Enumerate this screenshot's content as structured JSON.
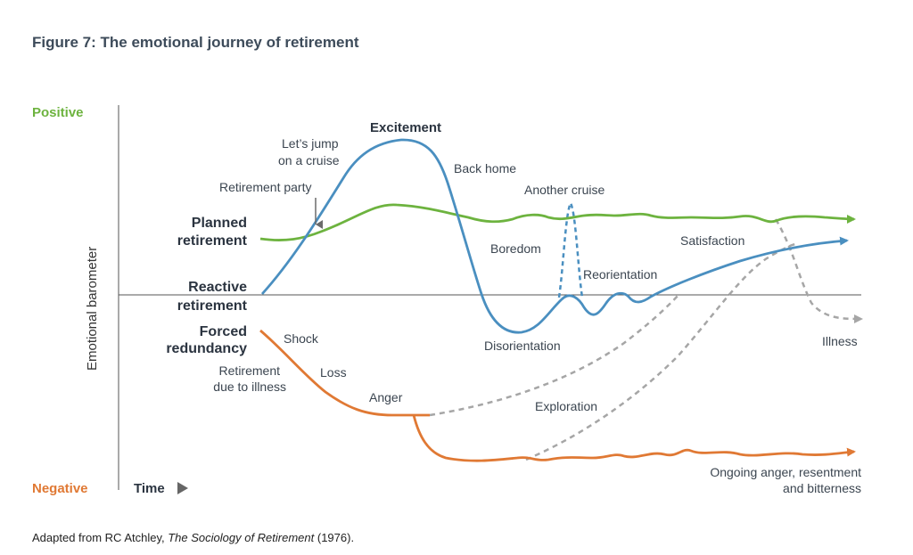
{
  "figure_title": "Figure 7: The emotional journey of retirement",
  "caption": {
    "prefix": "Adapted from RC Atchley, ",
    "book": "The Sociology of Retirement",
    "suffix": " (1976)."
  },
  "axis": {
    "top": "Positive",
    "bottom": "Negative",
    "vertical": "Emotional barometer",
    "horizontal": "Time"
  },
  "paths": {
    "planned": {
      "label_1": "Planned",
      "label_2": "retirement"
    },
    "reactive": {
      "label_1": "Reactive",
      "label_2": "retirement"
    },
    "forced": {
      "label_1": "Forced",
      "label_2": "redundancy"
    },
    "illness": {
      "label_1": "Retirement",
      "label_2": "due to illness"
    }
  },
  "stages": {
    "excitement": "Excitement",
    "cruise_1": "Let’s jump",
    "cruise_2": "on a cruise",
    "party": "Retirement party",
    "back_home": "Back home",
    "another_cruise": "Another cruise",
    "boredom": "Boredom",
    "satisfaction": "Satisfaction",
    "reorientation": "Reorientation",
    "disorientation": "Disorientation",
    "shock": "Shock",
    "loss": "Loss",
    "anger": "Anger",
    "exploration": "Exploration",
    "illness_end": "Illness",
    "ongoing_1": "Ongoing anger, resentment",
    "ongoing_2": "and bitterness"
  },
  "colors": {
    "green": "#6db33f",
    "blue": "#4a8fc0",
    "orange": "#e07934",
    "grey": "#a6a6a6",
    "text_dark": "#2b3440"
  }
}
